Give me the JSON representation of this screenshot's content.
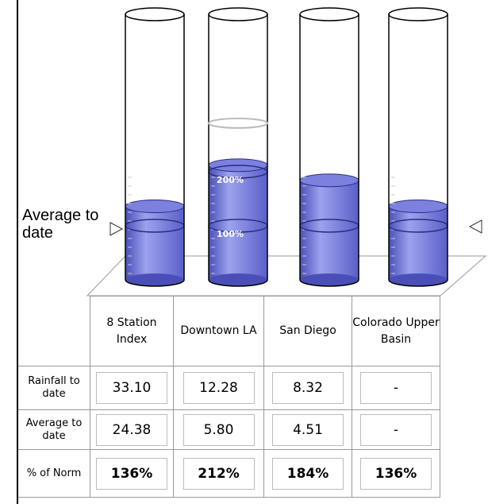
{
  "gauge": {
    "ticks": [
      {
        "value": 100,
        "label": "100%"
      },
      {
        "value": 200,
        "label": "200%"
      }
    ],
    "side_label": "Average to date"
  },
  "table": {
    "header": [
      "8 Station Index",
      "Downtown LA",
      "San Diego",
      "Colorado Upper Basin"
    ],
    "rows": [
      {
        "label": "Rainfall to date",
        "cells": [
          "33.10",
          "12.28",
          "8.32",
          "-"
        ]
      },
      {
        "label": "Average to date",
        "cells": [
          "24.38",
          "5.80",
          "4.51",
          "-"
        ]
      },
      {
        "label": "% of Norm",
        "cells": [
          {
            "value": 136,
            "label": "136%"
          },
          {
            "value": 212,
            "label": "212%"
          },
          {
            "value": 184,
            "label": "184%"
          },
          {
            "value": 136,
            "label": "136%"
          }
        ]
      }
    ]
  }
}
